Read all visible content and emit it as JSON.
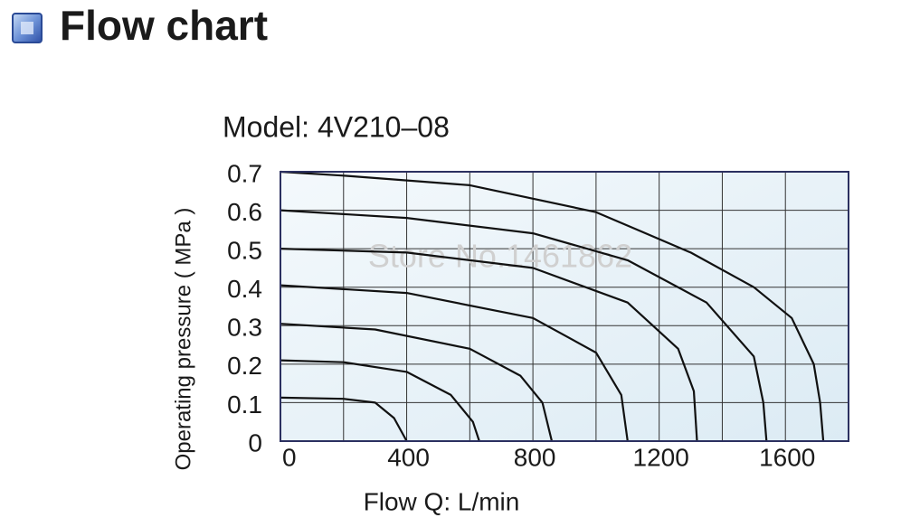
{
  "header": {
    "title": "Flow chart"
  },
  "chart_data": {
    "type": "line",
    "title": "Model: 4V210–08",
    "xlabel": "Flow  Q: L/min",
    "ylabel": "Operating pressure ( MPa )",
    "annotation": "Store No.1461862",
    "xlim": [
      0,
      1800
    ],
    "ylim": [
      0,
      0.7
    ],
    "xticks": [
      0,
      400,
      800,
      1200,
      1600
    ],
    "minor_xticks": [
      200,
      600,
      1000,
      1400
    ],
    "yticks": [
      0,
      0.1,
      0.2,
      0.3,
      0.4,
      0.5,
      0.6,
      0.7
    ],
    "grid": true,
    "series": [
      {
        "color": "#111111",
        "x": [
          0,
          200,
          300,
          360,
          400
        ],
        "values": [
          0.113,
          0.11,
          0.1,
          0.06,
          0
        ]
      },
      {
        "color": "#111111",
        "x": [
          0,
          200,
          400,
          540,
          610,
          630
        ],
        "values": [
          0.21,
          0.205,
          0.18,
          0.12,
          0.05,
          0
        ]
      },
      {
        "color": "#111111",
        "x": [
          0,
          300,
          600,
          760,
          830,
          860
        ],
        "values": [
          0.305,
          0.29,
          0.24,
          0.17,
          0.1,
          0
        ]
      },
      {
        "color": "#111111",
        "x": [
          0,
          400,
          800,
          1000,
          1080,
          1100
        ],
        "values": [
          0.405,
          0.385,
          0.32,
          0.23,
          0.12,
          0
        ]
      },
      {
        "color": "#111111",
        "x": [
          0,
          400,
          800,
          1100,
          1260,
          1310,
          1320
        ],
        "values": [
          0.5,
          0.49,
          0.45,
          0.36,
          0.24,
          0.13,
          0
        ]
      },
      {
        "color": "#111111",
        "x": [
          0,
          400,
          800,
          1100,
          1350,
          1500,
          1530,
          1540
        ],
        "values": [
          0.6,
          0.58,
          0.54,
          0.47,
          0.36,
          0.22,
          0.1,
          0
        ]
      },
      {
        "color": "#111111",
        "x": [
          0,
          200,
          600,
          1000,
          1300,
          1500,
          1620,
          1690,
          1710,
          1720
        ],
        "values": [
          0.7,
          0.69,
          0.665,
          0.595,
          0.49,
          0.4,
          0.32,
          0.2,
          0.1,
          0
        ]
      }
    ]
  }
}
